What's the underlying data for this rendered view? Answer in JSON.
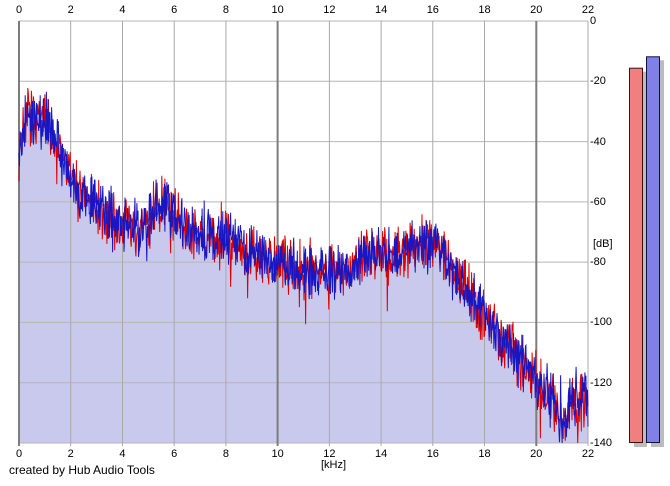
{
  "credit": "created by Hub Audio Tools",
  "chart_data": {
    "type": "line",
    "title": "",
    "xlabel": "[kHz]",
    "ylabel": "[dB]",
    "x_ticks": [
      0,
      2,
      4,
      6,
      8,
      10,
      12,
      14,
      16,
      18,
      20,
      22
    ],
    "x_major_ticks": [
      0,
      10,
      20
    ],
    "y_ticks": [
      0,
      -20,
      -40,
      -60,
      -80,
      -100,
      -120,
      -140
    ],
    "xlim": [
      0,
      22
    ],
    "ylim": [
      -140,
      0
    ],
    "grid": true,
    "legend_position": "none",
    "fill_color": "#c9c9ed",
    "grid_minor_color": "#a9a9a9",
    "grid_major_color": "#7d7d7d",
    "grid_h_color": "#b6b6b6",
    "noise_db": 5.5,
    "envelope_db_by_khz": [
      [
        0,
        -43
      ],
      [
        0.15,
        -36
      ],
      [
        0.3,
        -31
      ],
      [
        0.5,
        -31
      ],
      [
        0.8,
        -34
      ],
      [
        1.0,
        -33
      ],
      [
        1.2,
        -35
      ],
      [
        1.5,
        -41
      ],
      [
        1.8,
        -48
      ],
      [
        2.1,
        -54
      ],
      [
        2.5,
        -58
      ],
      [
        3.0,
        -61
      ],
      [
        3.5,
        -64
      ],
      [
        4.0,
        -67
      ],
      [
        4.5,
        -70
      ],
      [
        5.0,
        -67
      ],
      [
        5.4,
        -61
      ],
      [
        5.7,
        -59
      ],
      [
        6.0,
        -64
      ],
      [
        6.5,
        -69
      ],
      [
        7.0,
        -71
      ],
      [
        7.5,
        -70
      ],
      [
        8.0,
        -73
      ],
      [
        8.5,
        -74
      ],
      [
        9.0,
        -77
      ],
      [
        9.5,
        -80
      ],
      [
        10.0,
        -80
      ],
      [
        10.5,
        -82
      ],
      [
        11.0,
        -82
      ],
      [
        11.5,
        -83
      ],
      [
        12.0,
        -83
      ],
      [
        12.5,
        -83
      ],
      [
        13.0,
        -81
      ],
      [
        13.5,
        -76
      ],
      [
        14.0,
        -77
      ],
      [
        14.5,
        -79
      ],
      [
        15.0,
        -76
      ],
      [
        15.5,
        -73
      ],
      [
        16.0,
        -74
      ],
      [
        16.4,
        -77
      ],
      [
        16.8,
        -82
      ],
      [
        17.2,
        -88
      ],
      [
        17.6,
        -93
      ],
      [
        18.0,
        -98
      ],
      [
        18.5,
        -103
      ],
      [
        19.0,
        -108
      ],
      [
        19.5,
        -113
      ],
      [
        20.0,
        -119
      ],
      [
        20.3,
        -122
      ],
      [
        20.6,
        -125
      ],
      [
        20.9,
        -131
      ],
      [
        21.1,
        -134
      ],
      [
        21.3,
        -127
      ],
      [
        21.6,
        -127
      ],
      [
        21.8,
        -126
      ],
      [
        22,
        -124
      ]
    ],
    "series": [
      {
        "name": "left-channel",
        "color": "#dd0000",
        "seed": 7
      },
      {
        "name": "right-channel",
        "color": "#1616c4",
        "seed": 13
      }
    ],
    "meters": [
      {
        "name": "left-level-meter",
        "value_db": -15.5,
        "fill": "#f08080",
        "border": "#401010"
      },
      {
        "name": "right-level-meter",
        "value_db": -11.7,
        "fill": "#8080e8",
        "border": "#101040"
      }
    ],
    "meter_shadow_color": "#bcbcbc"
  }
}
